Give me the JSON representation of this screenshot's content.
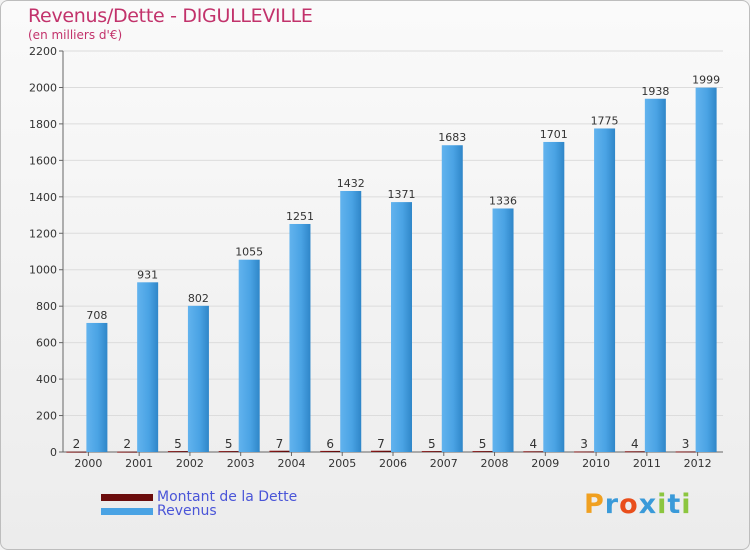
{
  "title": "Revenus/Dette - DIGULLEVILLE",
  "subtitle": "(en milliers d'€)",
  "chart_data": {
    "type": "bar",
    "categories": [
      "2000",
      "2001",
      "2002",
      "2003",
      "2004",
      "2005",
      "2006",
      "2007",
      "2008",
      "2009",
      "2010",
      "2011",
      "2012"
    ],
    "series": [
      {
        "name": "Montant de la Dette",
        "color": "#6b0c0c",
        "values": [
          2,
          2,
          5,
          5,
          7,
          6,
          7,
          5,
          5,
          4,
          3,
          4,
          3
        ]
      },
      {
        "name": "Revenus",
        "color": "#4aa3e4",
        "values": [
          708,
          931,
          802,
          1055,
          1251,
          1432,
          1371,
          1683,
          1336,
          1701,
          1775,
          1938,
          1999
        ]
      }
    ],
    "ylim": [
      0,
      2200
    ],
    "yticks": [
      0,
      200,
      400,
      600,
      800,
      1000,
      1200,
      1400,
      1600,
      1800,
      2000,
      2200
    ],
    "xlabel": "",
    "ylabel": "",
    "grid": true,
    "legend": "bottom-left"
  },
  "legend": {
    "items": [
      {
        "label": "Montant de la Dette",
        "color": "#6b0c0c"
      },
      {
        "label": "Revenus",
        "color": "#4aa3e4"
      }
    ]
  },
  "logo": {
    "letters": [
      "P",
      "r",
      "o",
      "x",
      "i",
      "t",
      "i"
    ],
    "colors": [
      "#f0a020",
      "#3a9ad9",
      "#e94e1b",
      "#3a9ad9",
      "#8cc63f",
      "#3a9ad9",
      "#8cc63f"
    ]
  }
}
